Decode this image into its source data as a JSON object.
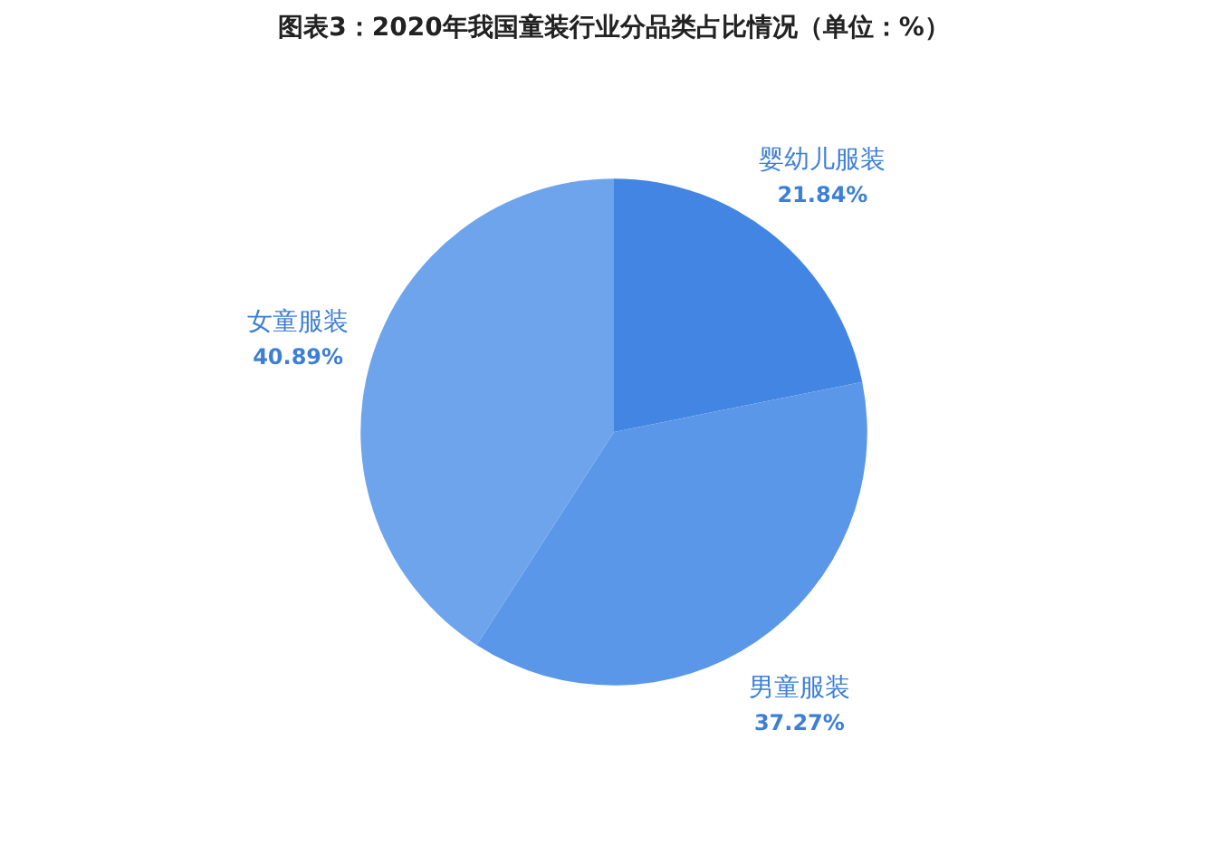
{
  "chart_data": {
    "type": "pie",
    "title": "图表3：2020年我国童装行业分品类占比情况（单位：%）",
    "categories": [
      "婴幼儿服装",
      "男童服装",
      "女童服装"
    ],
    "values": [
      21.84,
      37.27,
      40.89
    ],
    "value_labels": [
      "21.84%",
      "37.27%",
      "40.89%"
    ],
    "colors": [
      "#4285e3",
      "#5b97e8",
      "#6ea4ec"
    ]
  }
}
